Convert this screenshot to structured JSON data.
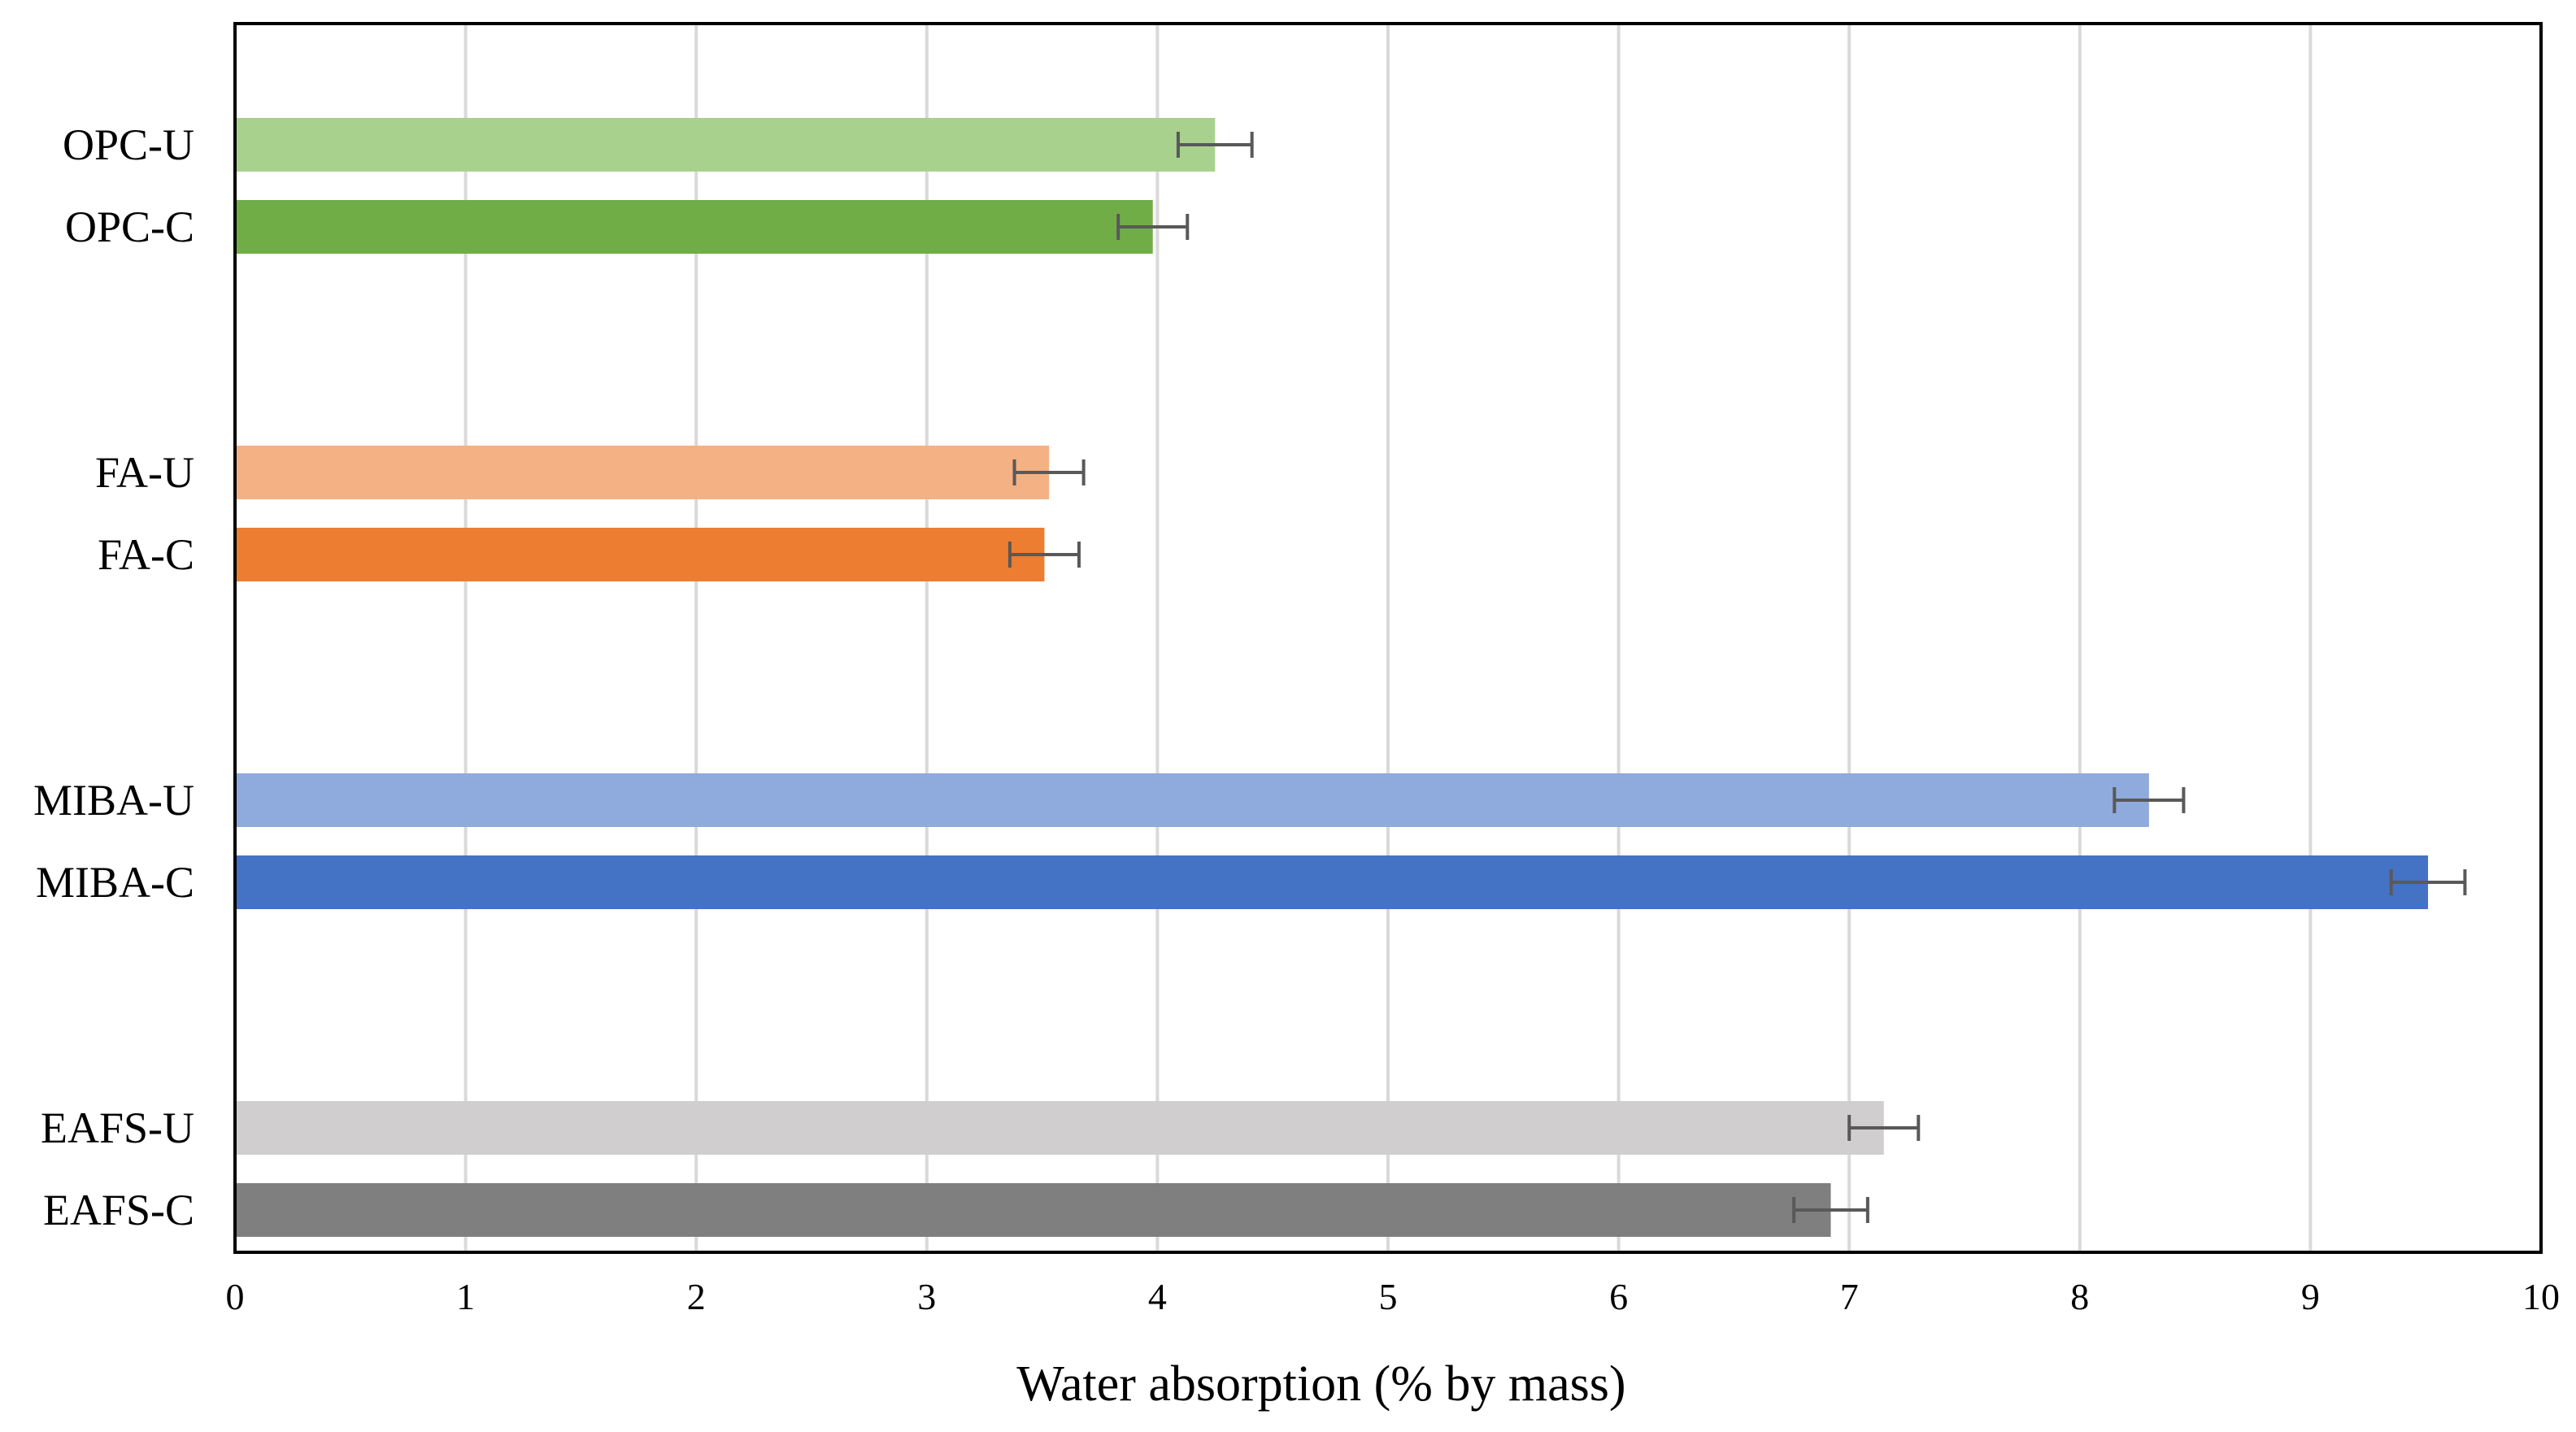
{
  "chart_data": {
    "type": "bar",
    "orientation": "horizontal",
    "title": "",
    "xlabel": "Water absorption (% by mass)",
    "ylabel": "",
    "xlim": [
      0,
      10
    ],
    "x_ticks": [
      0,
      1,
      2,
      3,
      4,
      5,
      6,
      7,
      8,
      9,
      10
    ],
    "grid": true,
    "legend": "none",
    "groups": [
      {
        "name": "OPC",
        "bars": [
          {
            "label": "OPC-U",
            "value": 4.25,
            "error": 0.16,
            "color": "#a9d18e"
          },
          {
            "label": "OPC-C",
            "value": 3.98,
            "error": 0.15,
            "color": "#70ad47"
          }
        ]
      },
      {
        "name": "FA",
        "bars": [
          {
            "label": "FA-U",
            "value": 3.53,
            "error": 0.15,
            "color": "#f4b183"
          },
          {
            "label": "FA-C",
            "value": 3.51,
            "error": 0.15,
            "color": "#ed7d31"
          }
        ]
      },
      {
        "name": "MIBA",
        "bars": [
          {
            "label": "MIBA-U",
            "value": 8.3,
            "error": 0.15,
            "color": "#8faadc"
          },
          {
            "label": "MIBA-C",
            "value": 9.51,
            "error": 0.16,
            "color": "#4472c4"
          }
        ]
      },
      {
        "name": "EAFS",
        "bars": [
          {
            "label": "EAFS-U",
            "value": 7.15,
            "error": 0.15,
            "color": "#d0cece"
          },
          {
            "label": "EAFS-C",
            "value": 6.92,
            "error": 0.16,
            "color": "#7f7f7f"
          }
        ]
      }
    ]
  }
}
